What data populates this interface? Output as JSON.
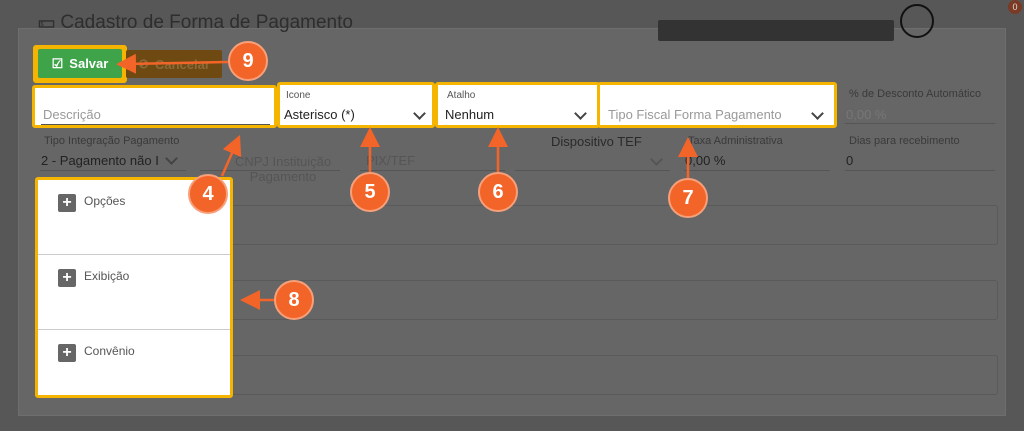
{
  "header": {
    "title": "Cadastro de Forma de Pagamento",
    "notification_count": "0",
    "icons": {
      "title": "money-icon",
      "user": "user-icon"
    }
  },
  "toolbar": {
    "save_label": "Salvar",
    "cancel_label": "Cancelar"
  },
  "form": {
    "descricao_placeholder": "Descrição",
    "icone_label": "Icone",
    "icone_value": "Asterisco (*)",
    "atalho_label": "Atalho",
    "atalho_value": "Nenhum",
    "tipo_fiscal_placeholder": "Tipo Fiscal Forma Pagamento",
    "desconto_label": "% de Desconto Automático",
    "desconto_value": "0,00 %",
    "tipo_integracao_label": "Tipo Integração Pagamento",
    "tipo_integracao_value": "2 - Pagamento não I",
    "cnpj_label": "CNPJ Instituição Pagamento",
    "pix_label": "PIX/TEF",
    "dispositivo_label": "Dispositivo TEF",
    "taxa_label": "Taxa Administrativa",
    "taxa_value": "0,00 %",
    "dias_label": "Dias para recebimento",
    "dias_value": "0"
  },
  "sections": [
    {
      "label": "Opções"
    },
    {
      "label": "Exibição"
    },
    {
      "label": "Convênio"
    }
  ],
  "markers": [
    "9",
    "4",
    "5",
    "6",
    "7",
    "8"
  ],
  "colors": {
    "highlight": "#f5b400",
    "marker": "#f26428",
    "save": "#3fa34a"
  }
}
